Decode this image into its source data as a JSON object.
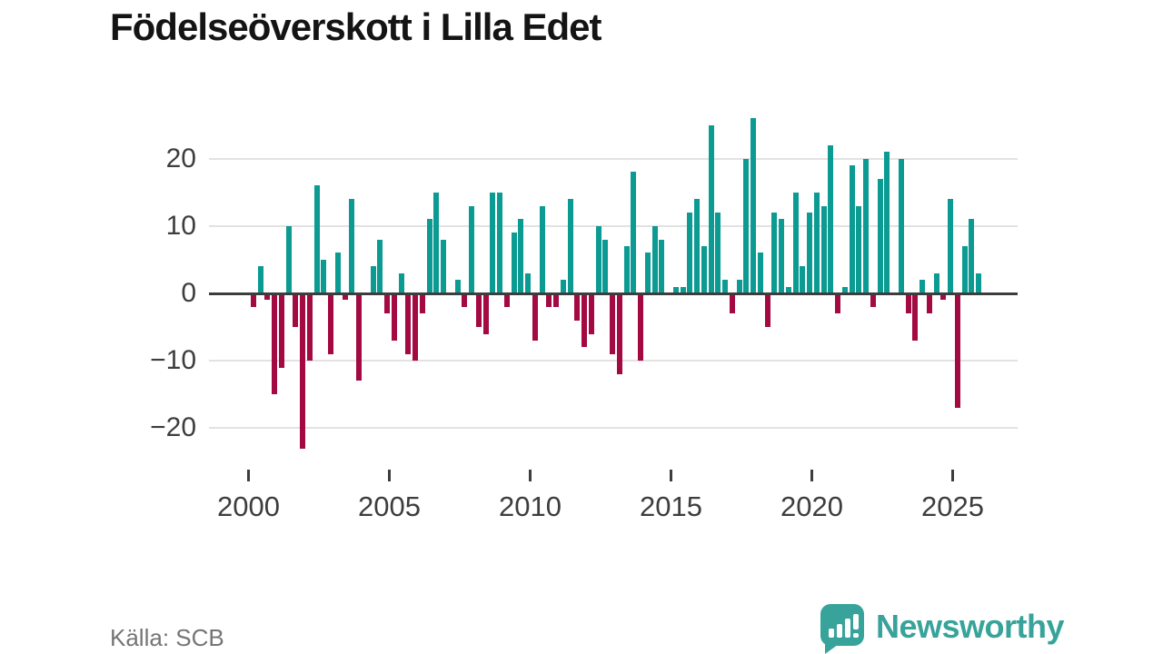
{
  "title": "Födelseöverskott i Lilla Edet",
  "source": {
    "label": "Källa: SCB"
  },
  "brand": {
    "name": "Newsworthy"
  },
  "colors": {
    "positive": "#0b9b92",
    "negative": "#a30a42",
    "grid": "#e2e2e2",
    "zero_line": "#3d3d3d",
    "title_text": "#141414",
    "axis_text": "#3d3d3d",
    "source_text": "#757575",
    "brand_teal": "#38a39a",
    "background": "#ffffff"
  },
  "chart_data": {
    "type": "bar",
    "title": "Födelseöverskott i Lilla Edet",
    "x_unit": "quarter",
    "start_period": "2000-Q1",
    "end_period": "2025-Q4",
    "values": [
      -2,
      4,
      -1,
      -15,
      -11,
      10,
      -5,
      -23,
      -10,
      16,
      5,
      -9,
      6,
      -1,
      14,
      -13,
      0,
      4,
      8,
      -3,
      -7,
      3,
      -9,
      -10,
      -3,
      11,
      15,
      8,
      0,
      2,
      -2,
      13,
      -5,
      -6,
      15,
      15,
      -2,
      9,
      11,
      3,
      -7,
      13,
      -2,
      -2,
      2,
      14,
      -4,
      -8,
      -6,
      10,
      8,
      -9,
      -12,
      7,
      18,
      -10,
      6,
      10,
      8,
      0,
      1,
      1,
      12,
      14,
      7,
      25,
      12,
      2,
      -3,
      2,
      20,
      26,
      6,
      -5,
      12,
      11,
      1,
      15,
      4,
      12,
      15,
      13,
      22,
      -3,
      1,
      19,
      13,
      20,
      -2,
      17,
      21,
      0,
      20,
      -3,
      -7,
      2,
      -3,
      3,
      -1,
      14,
      -17,
      7,
      11,
      3
    ],
    "x_tick_labels": [
      "2000",
      "2005",
      "2010",
      "2015",
      "2020",
      "2025"
    ],
    "x_tick_years": [
      2000,
      2005,
      2010,
      2015,
      2020,
      2025
    ],
    "y_tick_values": [
      20,
      10,
      0,
      -10,
      -20
    ],
    "y_tick_labels": [
      "20",
      "10",
      "0",
      "−10",
      "−20"
    ],
    "ylim": [
      -24,
      27
    ],
    "grid": "horizontal",
    "legend": "none"
  }
}
